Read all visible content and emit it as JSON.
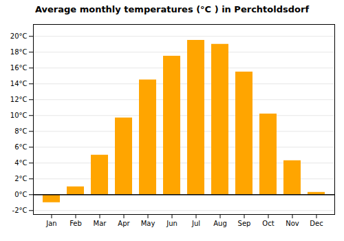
{
  "chart_data": {
    "type": "bar",
    "title": "Average monthly temperatures (°C ) in Perchtoldsdorf",
    "categories": [
      "Jan",
      "Feb",
      "Mar",
      "Apr",
      "May",
      "Jun",
      "Jul",
      "Aug",
      "Sep",
      "Oct",
      "Nov",
      "Dec"
    ],
    "values": [
      -1.0,
      1.0,
      5.0,
      9.7,
      14.5,
      17.5,
      19.5,
      19.0,
      15.5,
      10.2,
      4.3,
      0.3
    ],
    "color": "#FFA500",
    "ylim": [
      -2.5,
      21.5
    ],
    "yticks": [
      {
        "value": -2,
        "label": "-2°C"
      },
      {
        "value": 0,
        "label": "0°C"
      },
      {
        "value": 2,
        "label": "2°C"
      },
      {
        "value": 4,
        "label": "4°C"
      },
      {
        "value": 6,
        "label": "6°C"
      },
      {
        "value": 8,
        "label": "8°C"
      },
      {
        "value": 10,
        "label": "10°C"
      },
      {
        "value": 12,
        "label": "12°C"
      },
      {
        "value": 14,
        "label": "14°C"
      },
      {
        "value": 16,
        "label": "16°C"
      },
      {
        "value": 18,
        "label": "18°C"
      },
      {
        "value": 20,
        "label": "20°C"
      }
    ],
    "grid": true
  }
}
